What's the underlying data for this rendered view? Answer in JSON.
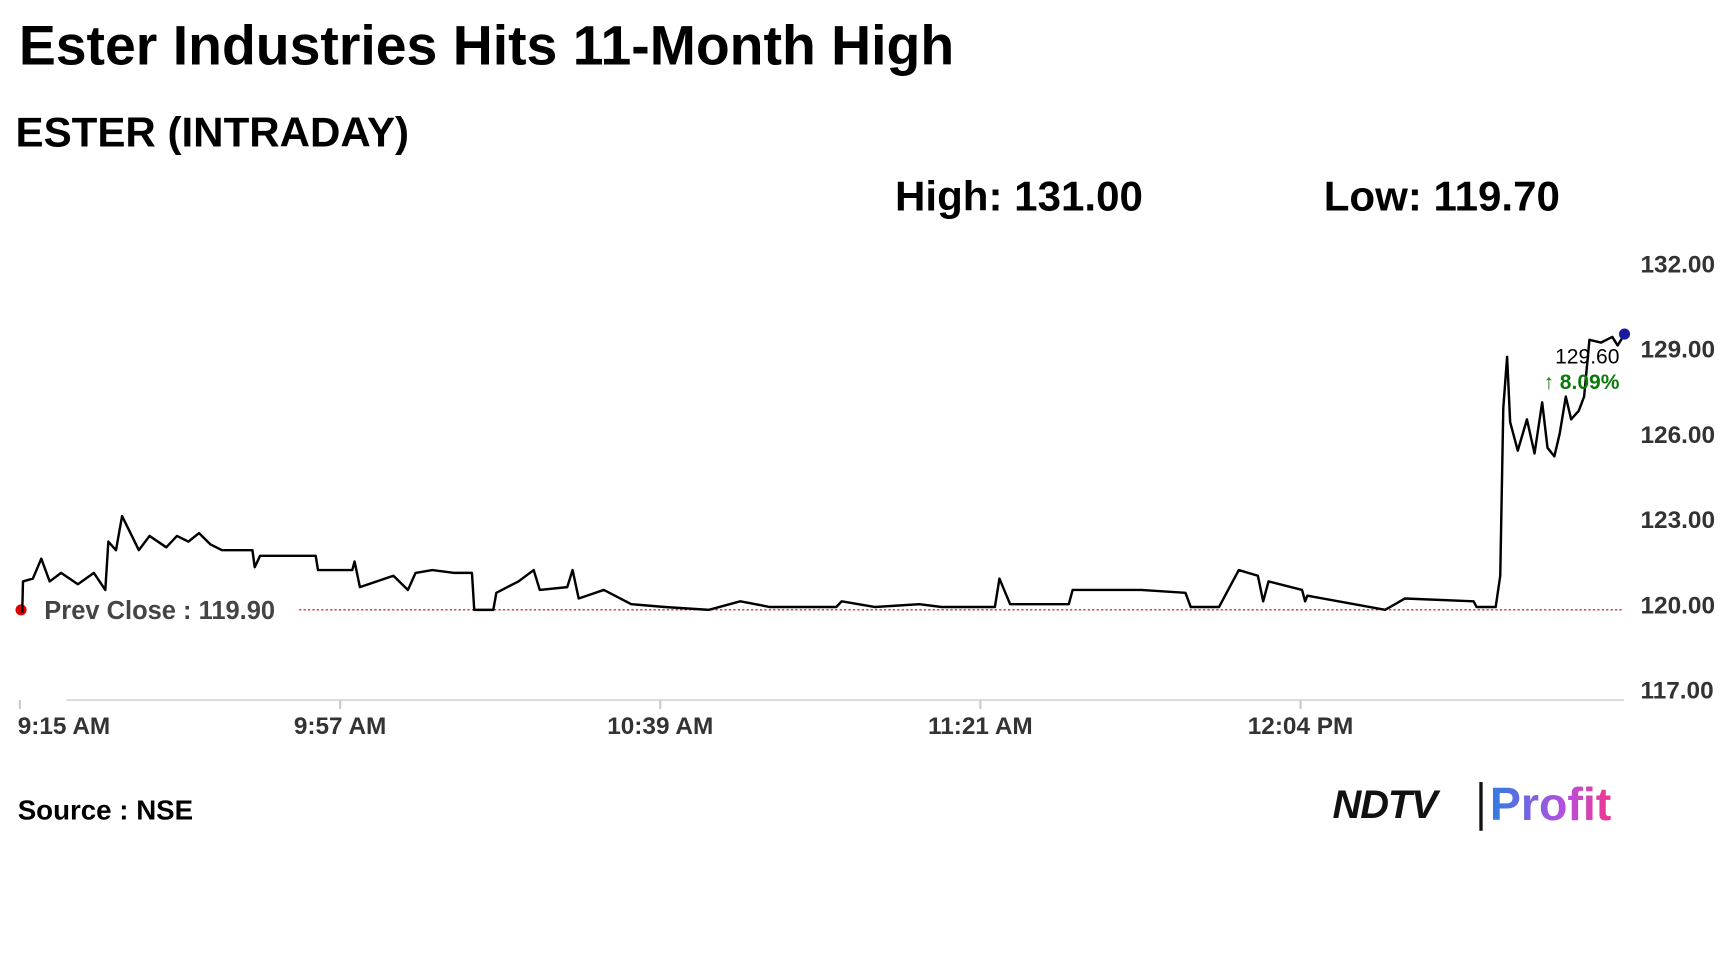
{
  "chart_data": {
    "type": "line",
    "title": "Ester Industries Hits 11-Month High",
    "subtitle": "ESTER (INTRADAY)",
    "high_text": "High: 131.00",
    "low_text": "Low: 119.70",
    "source": "Source : NSE",
    "logo": {
      "left": "NDTV",
      "right": "Profit"
    },
    "prev_close": {
      "value": 119.9,
      "label": "Prev Close : 119.90"
    },
    "annotations": [
      "129.60",
      "↑ 8.09%"
    ],
    "x": [
      555.3,
      555.4,
      556.7,
      557.8,
      558.9,
      560.4,
      562.6,
      564.7,
      566.2,
      566.6,
      567.6,
      568.4,
      569.5,
      570.6,
      572.0,
      574.2,
      575.6,
      577.1,
      578.5,
      580.0,
      581.5,
      585.5,
      585.8,
      586.5,
      593.8,
      594.1,
      598.6,
      598.9,
      599.6,
      601.8,
      604.0,
      605.9,
      606.9,
      609.1,
      612.0,
      614.3,
      614.6,
      617.1,
      617.5,
      620.4,
      622.4,
      623.2,
      626.8,
      627.5,
      628.3,
      631.6,
      635.2,
      639.6,
      645.4,
      649.5,
      653.4,
      662.1,
      662.8,
      667.2,
      673.0,
      675.9,
      682.9,
      683.5,
      684.9,
      692.6,
      693.1,
      702.1,
      707.9,
      708.6,
      712.3,
      714.9,
      717.4,
      718.1,
      718.8,
      723.2,
      723.6,
      723.9,
      734.1,
      736.7,
      745.7,
      746.1,
      748.6,
      749.2,
      749.6,
      750.1,
      750.5,
      751.5,
      752.7,
      753.7,
      754.7,
      755.4,
      756.3,
      757.0,
      757.8,
      758.5,
      759.5,
      760.2,
      760.9,
      762.4,
      763.9,
      764.6,
      765.5
    ],
    "series": [
      {
        "name": "ESTER",
        "color": "#000000",
        "values": [
          119.8,
          120.9,
          121.0,
          121.7,
          120.9,
          121.2,
          120.8,
          121.2,
          120.6,
          122.3,
          122.0,
          123.2,
          122.6,
          122.0,
          122.5,
          122.1,
          122.5,
          122.3,
          122.6,
          122.2,
          122.0,
          122.0,
          121.4,
          121.8,
          121.8,
          121.3,
          121.3,
          121.6,
          120.7,
          120.9,
          121.1,
          120.6,
          121.2,
          121.3,
          121.2,
          121.2,
          119.9,
          119.9,
          120.5,
          120.9,
          121.3,
          120.6,
          120.7,
          121.3,
          120.3,
          120.6,
          120.1,
          120.0,
          119.9,
          120.2,
          120.0,
          120.0,
          120.2,
          120.0,
          120.1,
          120.0,
          120.0,
          121.0,
          120.1,
          120.1,
          120.6,
          120.6,
          120.5,
          120.0,
          120.0,
          121.3,
          121.1,
          120.2,
          120.9,
          120.6,
          120.2,
          120.4,
          119.9,
          120.3,
          120.2,
          120.0,
          120.0,
          121.1,
          127.0,
          128.8,
          126.5,
          125.5,
          126.6,
          125.4,
          127.2,
          125.6,
          125.3,
          126.1,
          127.4,
          126.6,
          126.9,
          127.4,
          129.4,
          129.3,
          129.5,
          129.2,
          129.6
        ]
      }
    ],
    "xlim": [
      555,
      766
    ],
    "xticks": [
      {
        "value": 555,
        "label": "9:15 AM"
      },
      {
        "value": 597,
        "label": "9:57 AM"
      },
      {
        "value": 639,
        "label": "10:39 AM"
      },
      {
        "value": 681,
        "label": "11:21 AM"
      },
      {
        "value": 723,
        "label": "12:04 PM"
      }
    ],
    "ylim": [
      117,
      132
    ],
    "yticks": [
      {
        "value": 117,
        "label": "117.00"
      },
      {
        "value": 120,
        "label": "120.00"
      },
      {
        "value": 123,
        "label": "123.00"
      },
      {
        "value": 126,
        "label": "126.00"
      },
      {
        "value": 129,
        "label": "129.00"
      },
      {
        "value": 132,
        "label": "132.00"
      }
    ],
    "grid": false
  }
}
